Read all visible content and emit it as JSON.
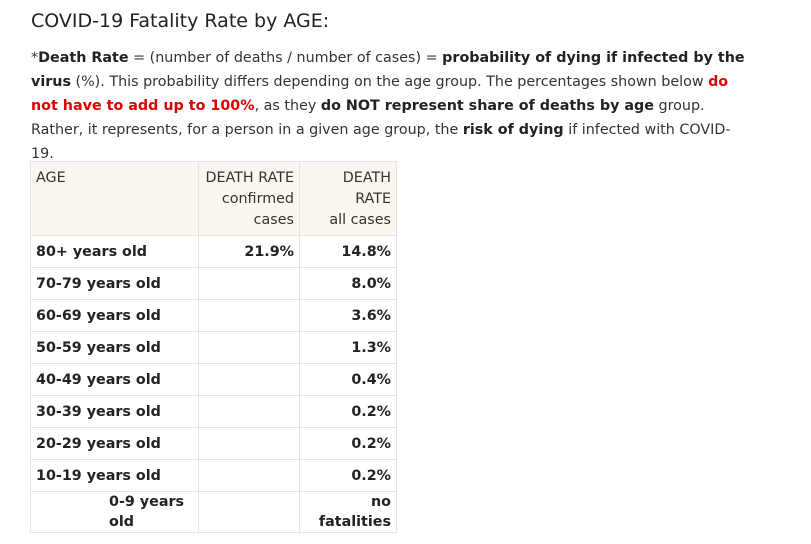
{
  "title": "COVID-19 Fatality Rate by AGE:",
  "intro": {
    "asterisk": "*",
    "term": "Death Rate",
    "formula": " = (number of deaths / number of cases) = ",
    "definition": "probability of dying if infected by the virus",
    "part2": " (%). This probability differs depending on the age group. The percentages shown below ",
    "red_text": "do not have to add up to 100%",
    "part3": ", as they ",
    "bold_not": "do NOT represent share of deaths by age",
    "part4": " group. Rather, it represents, for a person in a given age group, the ",
    "bold_risk": "risk of dying",
    "part5": " if infected with COVID-19."
  },
  "colors": {
    "red_emphasis": "#e00000",
    "header_bg": "#fbf6ef",
    "border": "#e4e4e4"
  },
  "table": {
    "headers": {
      "age": "AGE",
      "confirmed_line1": "DEATH RATE",
      "confirmed_line2": "confirmed",
      "confirmed_line3": "cases",
      "all_line1": "DEATH RATE",
      "all_line2": "all cases"
    },
    "rows": [
      {
        "age": "80+ years old",
        "confirmed": "21.9%",
        "all": "14.8%"
      },
      {
        "age": "70-79 years old",
        "confirmed": "",
        "all": "8.0%"
      },
      {
        "age": "60-69 years old",
        "confirmed": "",
        "all": "3.6%"
      },
      {
        "age": "50-59 years old",
        "confirmed": "",
        "all": "1.3%"
      },
      {
        "age": "40-49 years old",
        "confirmed": "",
        "all": "0.4%"
      },
      {
        "age": "30-39 years old",
        "confirmed": "",
        "all": "0.2%"
      },
      {
        "age": "20-29 years old",
        "confirmed": "",
        "all": "0.2%"
      },
      {
        "age": "10-19 years old",
        "confirmed": "",
        "all": "0.2%"
      },
      {
        "age": "0-9 years old",
        "confirmed": "",
        "all": "no fatalities"
      }
    ]
  }
}
